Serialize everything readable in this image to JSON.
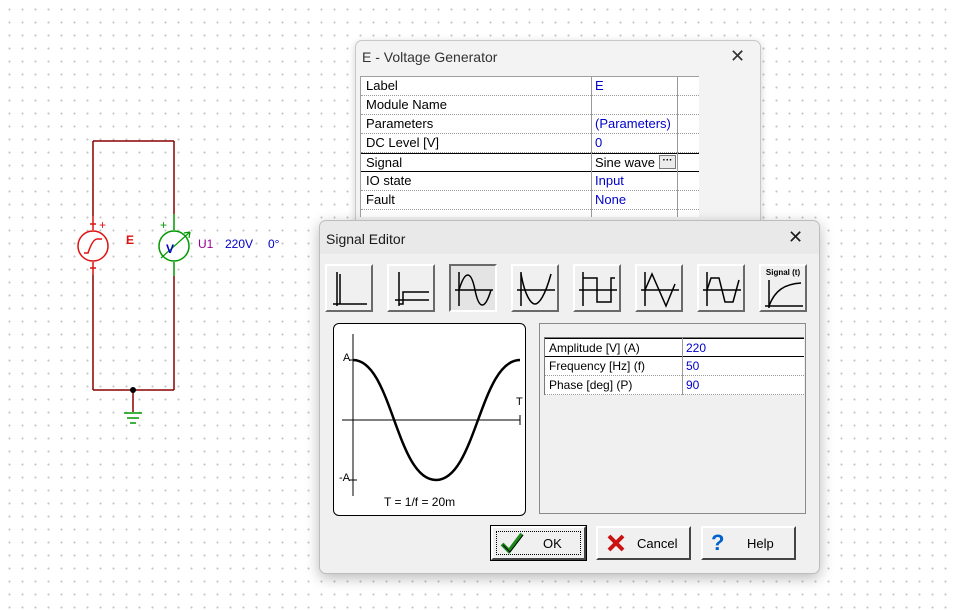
{
  "schematic": {
    "source_label": "E",
    "meter_label": "U1",
    "meter_reading": "220V",
    "meter_phase": "0°",
    "meter_symbol": "V",
    "plus": "+",
    "colors": {
      "source": "#dd1111",
      "meter": "#009900",
      "label": "#0000cc",
      "wire": "#8b0000"
    }
  },
  "voltage_generator": {
    "title": "E - Voltage Generator",
    "rows": [
      {
        "name": "Label",
        "value": "E"
      },
      {
        "name": "Module Name",
        "value": ""
      },
      {
        "name": "Parameters",
        "value": "(Parameters)"
      },
      {
        "name": "DC Level [V]",
        "value": "0"
      },
      {
        "name": "Signal",
        "value": "Sine wave",
        "ellipsis": "···"
      },
      {
        "name": "IO state",
        "value": "Input"
      },
      {
        "name": "Fault",
        "value": "None"
      }
    ]
  },
  "signal_editor": {
    "title": "Signal Editor",
    "signal_buttons": [
      {
        "icon": "unit-impulse-icon"
      },
      {
        "icon": "unit-step-icon"
      },
      {
        "icon": "sine-wave-icon",
        "selected": true
      },
      {
        "icon": "rectified-sine-icon"
      },
      {
        "icon": "square-wave-icon"
      },
      {
        "icon": "triangle-wave-icon"
      },
      {
        "icon": "trapezoid-wave-icon"
      },
      {
        "icon": "custom-signal-icon",
        "label": "Signal (t)"
      }
    ],
    "preview": {
      "amp_pos": "A",
      "amp_neg": "-A",
      "time_axis": "T",
      "formula": "T = 1/f = 20m"
    },
    "parameters": [
      {
        "name": "Amplitude [V] (A)",
        "value": "220"
      },
      {
        "name": "Frequency [Hz] (f)",
        "value": "50"
      },
      {
        "name": "Phase [deg] (P)",
        "value": "90"
      }
    ],
    "buttons": {
      "ok": "OK",
      "cancel": "Cancel",
      "help": "Help"
    }
  }
}
